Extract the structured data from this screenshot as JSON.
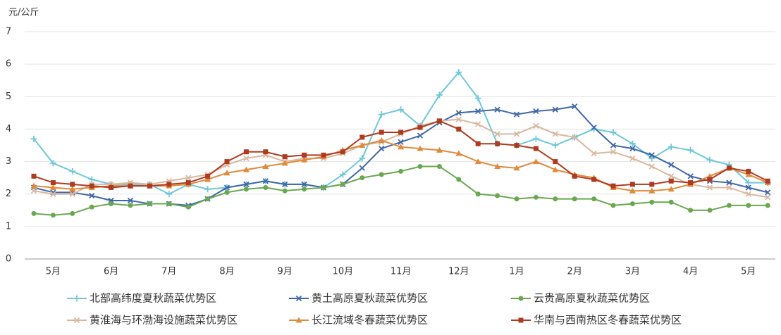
{
  "chart_data": {
    "type": "line",
    "y_label": "元/公斤",
    "categories": [
      null,
      "5月",
      null,
      null,
      "6月",
      null,
      null,
      "7月",
      null,
      null,
      "8月",
      null,
      null,
      "9月",
      null,
      null,
      "10月",
      null,
      null,
      "11月",
      null,
      null,
      "12月",
      null,
      null,
      "1月",
      null,
      null,
      "2月",
      null,
      null,
      "3月",
      null,
      null,
      "4月",
      null,
      null,
      "5月",
      null
    ],
    "ylim": [
      0,
      7
    ],
    "yticks": [
      0,
      1,
      2,
      3,
      4,
      5,
      6,
      7
    ],
    "grid": true,
    "series": [
      {
        "name": "北部高纬度夏秋蔬菜优势区",
        "color": "#6fc8d8",
        "marker": "plus",
        "values": [
          3.7,
          2.95,
          2.7,
          2.45,
          2.3,
          2.3,
          2.3,
          2.0,
          2.3,
          2.15,
          2.2,
          2.3,
          2.4,
          2.3,
          2.3,
          2.2,
          2.6,
          3.1,
          4.45,
          4.6,
          4.1,
          5.05,
          5.75,
          4.95,
          3.55,
          3.5,
          3.7,
          3.5,
          3.75,
          4.0,
          3.9,
          3.55,
          3.1,
          3.45,
          3.35,
          3.05,
          2.9,
          2.35,
          2.35
        ]
      },
      {
        "name": "黄土高原夏秋蔬菜优势区",
        "color": "#3f67a8",
        "marker": "x",
        "values": [
          2.2,
          2.05,
          2.05,
          1.95,
          1.8,
          1.8,
          1.7,
          1.7,
          1.65,
          1.85,
          2.2,
          2.3,
          2.4,
          2.3,
          2.3,
          2.2,
          2.3,
          2.8,
          3.4,
          3.6,
          3.8,
          4.2,
          4.5,
          4.55,
          4.6,
          4.45,
          4.55,
          4.6,
          4.7,
          4.05,
          3.5,
          3.4,
          3.2,
          2.9,
          2.55,
          2.4,
          2.35,
          2.2,
          2.05
        ]
      },
      {
        "name": "云贵高原夏秋蔬菜优势区",
        "color": "#6aa84f",
        "marker": "circle",
        "values": [
          1.4,
          1.35,
          1.4,
          1.6,
          1.7,
          1.65,
          1.7,
          1.7,
          1.6,
          1.85,
          2.05,
          2.15,
          2.2,
          2.1,
          2.15,
          2.2,
          2.3,
          2.5,
          2.6,
          2.7,
          2.85,
          2.85,
          2.45,
          2.0,
          1.95,
          1.85,
          1.9,
          1.85,
          1.85,
          1.85,
          1.65,
          1.7,
          1.75,
          1.75,
          1.5,
          1.5,
          1.65,
          1.65,
          1.65
        ]
      },
      {
        "name": "黄淮海与环渤海设施蔬菜优势区",
        "color": "#d9b8a0",
        "marker": "x",
        "values": [
          2.1,
          2.0,
          2.0,
          2.3,
          2.3,
          2.35,
          2.3,
          2.4,
          2.5,
          2.6,
          2.9,
          3.1,
          3.2,
          3.0,
          3.1,
          3.1,
          3.25,
          3.5,
          3.6,
          3.85,
          4.1,
          4.25,
          4.3,
          4.15,
          3.85,
          3.85,
          4.1,
          3.85,
          3.75,
          3.25,
          3.3,
          3.1,
          2.85,
          2.55,
          2.3,
          2.2,
          2.2,
          2.0,
          1.9
        ]
      },
      {
        "name": "长江流域冬春蔬菜优势区",
        "color": "#e08a3c",
        "marker": "triangle",
        "values": [
          2.25,
          2.2,
          2.15,
          2.2,
          2.25,
          2.25,
          2.25,
          2.25,
          2.3,
          2.45,
          2.65,
          2.75,
          2.85,
          2.95,
          3.05,
          3.15,
          3.35,
          3.5,
          3.65,
          3.45,
          3.4,
          3.35,
          3.25,
          3.0,
          2.85,
          2.8,
          3.0,
          2.75,
          2.6,
          2.5,
          2.2,
          2.1,
          2.1,
          2.15,
          2.3,
          2.55,
          2.8,
          2.6,
          2.35
        ]
      },
      {
        "name": "华南与西南热区冬春蔬菜优势区",
        "color": "#b03a20",
        "marker": "square",
        "values": [
          2.55,
          2.35,
          2.3,
          2.25,
          2.2,
          2.25,
          2.25,
          2.3,
          2.35,
          2.55,
          3.0,
          3.3,
          3.3,
          3.15,
          3.2,
          3.2,
          3.3,
          3.75,
          3.9,
          3.9,
          4.05,
          4.25,
          4.0,
          3.55,
          3.55,
          3.5,
          3.4,
          3.0,
          2.55,
          2.45,
          2.25,
          2.3,
          2.3,
          2.4,
          2.35,
          2.45,
          2.8,
          2.7,
          2.4
        ]
      }
    ]
  }
}
